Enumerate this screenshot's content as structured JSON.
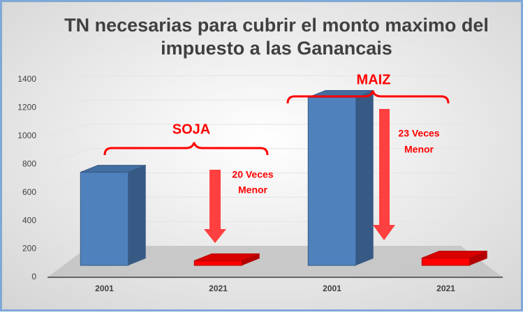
{
  "chart_data": {
    "type": "bar3d",
    "title": [
      "TN necesarias para cubrir el monto maximo del",
      "impuesto a las Ganancais"
    ],
    "categories": [
      "2001",
      "2021",
      "2001",
      "2021"
    ],
    "values": [
      660,
      33,
      1190,
      52
    ],
    "colors": [
      "#4f81bd",
      "#ff0000",
      "#4f81bd",
      "#ff0000"
    ],
    "ylim": [
      0,
      1400
    ],
    "yticks": [
      0,
      200,
      400,
      600,
      800,
      1000,
      1200,
      1400
    ],
    "grid": true,
    "annotations": [
      {
        "group": "SOJA",
        "note": [
          "20 Veces",
          "Menor"
        ]
      },
      {
        "group": "MAIZ",
        "note": [
          "23 Veces",
          "Menor"
        ]
      }
    ]
  }
}
